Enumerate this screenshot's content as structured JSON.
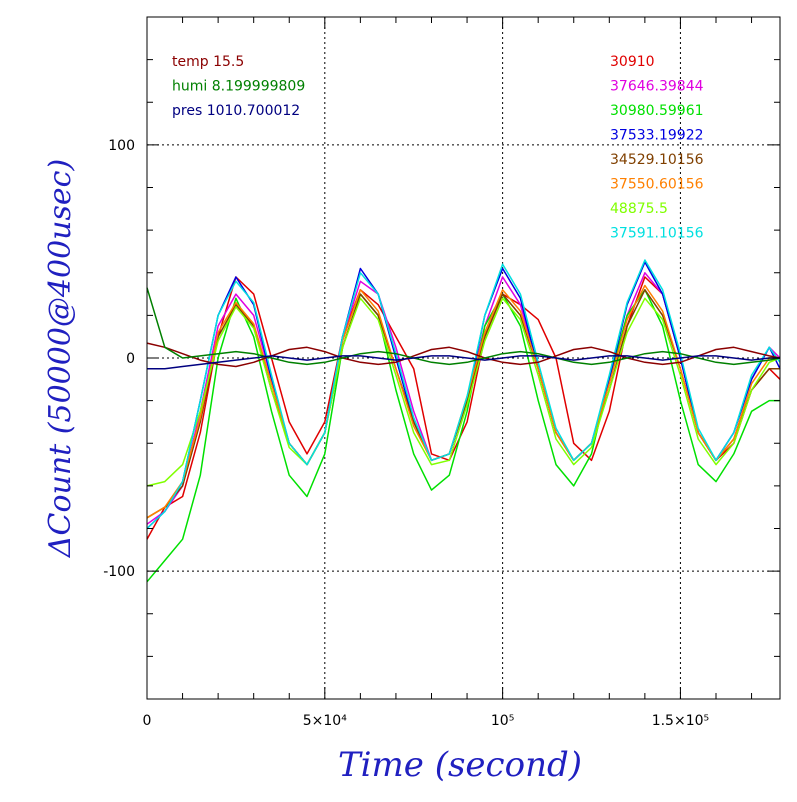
{
  "chart_data": {
    "type": "line",
    "title": "",
    "xlabel": "Time (second)",
    "ylabel": "ΔCount (50000@400usec)",
    "xlim": [
      0,
      178000
    ],
    "ylim": [
      -160,
      160
    ],
    "x_ticks": [
      {
        "value": 0,
        "label": "0"
      },
      {
        "value": 50000,
        "label": "5×10⁴"
      },
      {
        "value": 100000,
        "label": "10⁵"
      },
      {
        "value": 150000,
        "label": "1.5×10⁵"
      }
    ],
    "y_ticks": [
      {
        "value": -100,
        "label": "-100"
      },
      {
        "value": 0,
        "label": "0"
      },
      {
        "value": 100,
        "label": "100"
      }
    ],
    "grid": true,
    "legend_left": [
      {
        "label": "temp 15.5",
        "color": "#8b0000"
      },
      {
        "label": "humi 8.199999809",
        "color": "#008000"
      },
      {
        "label": "pres 1010.700012",
        "color": "#000080"
      }
    ],
    "legend_right": [
      {
        "label": "30910",
        "color": "#e00000"
      },
      {
        "label": "37646.39844",
        "color": "#e000e0"
      },
      {
        "label": "30980.59961",
        "color": "#00e000"
      },
      {
        "label": "37533.19922",
        "color": "#0000e0"
      },
      {
        "label": "34529.10156",
        "color": "#804000"
      },
      {
        "label": "37550.60156",
        "color": "#ff8000"
      },
      {
        "label": "48875.5",
        "color": "#80ff00"
      },
      {
        "label": "37591.10156",
        "color": "#00e0e0"
      }
    ],
    "x": [
      0,
      5000,
      10000,
      15000,
      20000,
      25000,
      30000,
      35000,
      40000,
      45000,
      50000,
      55000,
      60000,
      65000,
      70000,
      75000,
      80000,
      85000,
      90000,
      95000,
      100000,
      105000,
      110000,
      115000,
      120000,
      125000,
      130000,
      135000,
      140000,
      145000,
      150000,
      155000,
      160000,
      165000,
      170000,
      175000,
      178000
    ],
    "series": [
      {
        "color": "#e00000",
        "values": [
          -85,
          -70,
          -65,
          -35,
          10,
          38,
          30,
          0,
          -30,
          -45,
          -30,
          10,
          32,
          25,
          10,
          -5,
          -45,
          -48,
          -30,
          10,
          30,
          25,
          18,
          0,
          -40,
          -48,
          -25,
          15,
          38,
          30,
          0,
          -35,
          -48,
          -40,
          -15,
          -5,
          -10
        ]
      },
      {
        "color": "#e000e0",
        "values": [
          -78,
          -72,
          -60,
          -25,
          15,
          30,
          20,
          -10,
          -40,
          -50,
          -35,
          10,
          36,
          30,
          5,
          -25,
          -48,
          -45,
          -20,
          15,
          38,
          25,
          -5,
          -35,
          -48,
          -40,
          -10,
          20,
          40,
          30,
          0,
          -35,
          -48,
          -35,
          -10,
          5,
          0
        ]
      },
      {
        "color": "#00e000",
        "values": [
          -105,
          -95,
          -85,
          -55,
          0,
          28,
          10,
          -25,
          -55,
          -65,
          -45,
          5,
          30,
          20,
          -15,
          -45,
          -62,
          -55,
          -25,
          15,
          30,
          15,
          -20,
          -50,
          -60,
          -45,
          -10,
          20,
          32,
          15,
          -20,
          -50,
          -58,
          -45,
          -25,
          -20,
          -20
        ]
      },
      {
        "color": "#0000e0",
        "values": [
          -80,
          -72,
          -58,
          -20,
          20,
          38,
          25,
          -10,
          -40,
          -50,
          -35,
          10,
          42,
          30,
          0,
          -30,
          -48,
          -45,
          -20,
          20,
          42,
          28,
          -5,
          -35,
          -48,
          -40,
          -10,
          25,
          45,
          30,
          0,
          -35,
          -48,
          -35,
          -10,
          5,
          -5
        ]
      },
      {
        "color": "#804000",
        "values": [
          -75,
          -70,
          -60,
          -30,
          10,
          25,
          15,
          -15,
          -40,
          -50,
          -35,
          5,
          30,
          20,
          -5,
          -30,
          -48,
          -45,
          -20,
          10,
          30,
          20,
          -5,
          -35,
          -48,
          -40,
          -15,
          15,
          32,
          20,
          -5,
          -35,
          -48,
          -38,
          -15,
          -5,
          -5
        ]
      },
      {
        "color": "#ff8000",
        "values": [
          -75,
          -70,
          -58,
          -28,
          12,
          26,
          16,
          -12,
          -40,
          -50,
          -35,
          8,
          32,
          22,
          -5,
          -32,
          -48,
          -45,
          -18,
          12,
          32,
          22,
          -5,
          -35,
          -48,
          -40,
          -12,
          18,
          34,
          22,
          -5,
          -35,
          -48,
          -38,
          -12,
          0,
          0
        ]
      },
      {
        "color": "#80ff00",
        "values": [
          -60,
          -58,
          -50,
          -25,
          8,
          24,
          14,
          -15,
          -42,
          -50,
          -35,
          5,
          28,
          18,
          -8,
          -35,
          -50,
          -48,
          -22,
          8,
          28,
          18,
          -8,
          -38,
          -50,
          -42,
          -15,
          12,
          28,
          18,
          -8,
          -38,
          -50,
          -40,
          -15,
          -2,
          0
        ]
      },
      {
        "color": "#00e0e0",
        "values": [
          -80,
          -72,
          -58,
          -20,
          20,
          36,
          26,
          -8,
          -40,
          -50,
          -35,
          10,
          40,
          30,
          2,
          -28,
          -48,
          -45,
          -18,
          20,
          44,
          30,
          -2,
          -33,
          -48,
          -40,
          -8,
          26,
          46,
          32,
          2,
          -33,
          -48,
          -35,
          -8,
          5,
          -2
        ]
      },
      {
        "color": "#8b0000",
        "values": [
          7,
          5,
          2,
          -1,
          -3,
          -4,
          -2,
          1,
          4,
          5,
          3,
          0,
          -2,
          -3,
          -2,
          1,
          4,
          5,
          3,
          0,
          -2,
          -3,
          -2,
          1,
          4,
          5,
          3,
          0,
          -2,
          -3,
          -2,
          1,
          4,
          5,
          3,
          1,
          0
        ]
      },
      {
        "color": "#008000",
        "values": [
          33,
          5,
          0,
          1,
          2,
          3,
          2,
          0,
          -2,
          -3,
          -2,
          0,
          2,
          3,
          2,
          0,
          -2,
          -3,
          -2,
          0,
          2,
          3,
          2,
          0,
          -2,
          -3,
          -2,
          0,
          2,
          3,
          2,
          0,
          -2,
          -3,
          -2,
          -1,
          0
        ]
      },
      {
        "color": "#000080",
        "values": [
          -5,
          -5,
          -4,
          -3,
          -2,
          -1,
          0,
          1,
          0,
          -1,
          0,
          1,
          1,
          0,
          -1,
          0,
          1,
          1,
          0,
          -1,
          0,
          1,
          1,
          0,
          -1,
          0,
          1,
          1,
          0,
          -1,
          0,
          1,
          1,
          0,
          -1,
          0,
          0
        ]
      }
    ]
  }
}
